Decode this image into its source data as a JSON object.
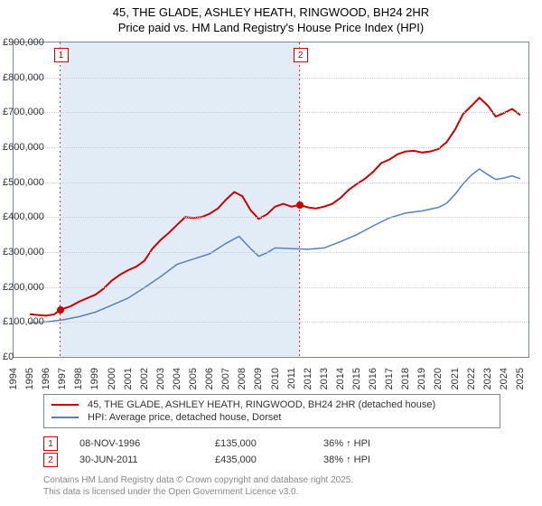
{
  "title": "45, THE GLADE, ASHLEY HEATH, RINGWOOD, BH24 2HR",
  "subtitle": "Price paid vs. HM Land Registry's House Price Index (HPI)",
  "chart": {
    "type": "line",
    "background_color": "#ffffff",
    "border_color": "#7a8aa3",
    "grid_color": "#c9d0dd",
    "x": {
      "min": 1994,
      "max": 2025.5,
      "ticks": [
        1994,
        1995,
        1996,
        1997,
        1998,
        1999,
        2000,
        2001,
        2002,
        2003,
        2004,
        2005,
        2006,
        2007,
        2008,
        2009,
        2010,
        2011,
        2012,
        2013,
        2014,
        2015,
        2016,
        2017,
        2018,
        2019,
        2020,
        2021,
        2022,
        2023,
        2024,
        2025
      ]
    },
    "y": {
      "min": 0,
      "max": 900000,
      "tick_step": 100000,
      "labels": [
        "£0",
        "£100,000",
        "£200,000",
        "£300,000",
        "£400,000",
        "£500,000",
        "£600,000",
        "£700,000",
        "£800,000",
        "£900,000"
      ]
    },
    "shade": {
      "start": 1996.85,
      "end": 2011.5,
      "color": "#e2ecf7"
    },
    "series": [
      {
        "name": "45, THE GLADE, ASHLEY HEATH, RINGWOOD, BH24 2HR (detached house)",
        "color": "#cc0000",
        "line_width": 2,
        "data": [
          [
            1995.0,
            122000
          ],
          [
            1995.5,
            120000
          ],
          [
            1996.0,
            118000
          ],
          [
            1996.5,
            122000
          ],
          [
            1996.85,
            135000
          ],
          [
            1997.5,
            145000
          ],
          [
            1998.0,
            158000
          ],
          [
            1998.5,
            168000
          ],
          [
            1999.0,
            178000
          ],
          [
            1999.5,
            195000
          ],
          [
            2000.0,
            218000
          ],
          [
            2000.5,
            235000
          ],
          [
            2001.0,
            248000
          ],
          [
            2001.5,
            258000
          ],
          [
            2002.0,
            275000
          ],
          [
            2002.5,
            310000
          ],
          [
            2003.0,
            335000
          ],
          [
            2003.5,
            355000
          ],
          [
            2004.0,
            378000
          ],
          [
            2004.5,
            400000
          ],
          [
            2005.0,
            398000
          ],
          [
            2005.5,
            400000
          ],
          [
            2006.0,
            410000
          ],
          [
            2006.5,
            425000
          ],
          [
            2007.0,
            450000
          ],
          [
            2007.5,
            472000
          ],
          [
            2008.0,
            460000
          ],
          [
            2008.5,
            420000
          ],
          [
            2009.0,
            395000
          ],
          [
            2009.5,
            408000
          ],
          [
            2010.0,
            430000
          ],
          [
            2010.5,
            438000
          ],
          [
            2011.0,
            430000
          ],
          [
            2011.5,
            435000
          ],
          [
            2012.0,
            428000
          ],
          [
            2012.5,
            425000
          ],
          [
            2013.0,
            430000
          ],
          [
            2013.5,
            438000
          ],
          [
            2014.0,
            455000
          ],
          [
            2014.5,
            478000
          ],
          [
            2015.0,
            495000
          ],
          [
            2015.5,
            510000
          ],
          [
            2016.0,
            530000
          ],
          [
            2016.5,
            555000
          ],
          [
            2017.0,
            565000
          ],
          [
            2017.5,
            580000
          ],
          [
            2018.0,
            588000
          ],
          [
            2018.5,
            590000
          ],
          [
            2019.0,
            585000
          ],
          [
            2019.5,
            588000
          ],
          [
            2020.0,
            595000
          ],
          [
            2020.5,
            615000
          ],
          [
            2021.0,
            650000
          ],
          [
            2021.5,
            695000
          ],
          [
            2022.0,
            718000
          ],
          [
            2022.5,
            742000
          ],
          [
            2023.0,
            720000
          ],
          [
            2023.5,
            688000
          ],
          [
            2024.0,
            698000
          ],
          [
            2024.5,
            710000
          ],
          [
            2025.0,
            692000
          ]
        ]
      },
      {
        "name": "HPI: Average price, detached house, Dorset",
        "color": "#5b7fbf",
        "line_width": 1.5,
        "data": [
          [
            1995.0,
            98000
          ],
          [
            1996.0,
            100000
          ],
          [
            1997.0,
            106000
          ],
          [
            1998.0,
            115000
          ],
          [
            1999.0,
            128000
          ],
          [
            2000.0,
            148000
          ],
          [
            2001.0,
            168000
          ],
          [
            2002.0,
            198000
          ],
          [
            2003.0,
            230000
          ],
          [
            2004.0,
            265000
          ],
          [
            2005.0,
            280000
          ],
          [
            2006.0,
            295000
          ],
          [
            2007.0,
            325000
          ],
          [
            2007.8,
            345000
          ],
          [
            2008.5,
            310000
          ],
          [
            2009.0,
            288000
          ],
          [
            2009.5,
            298000
          ],
          [
            2010.0,
            312000
          ],
          [
            2011.0,
            310000
          ],
          [
            2012.0,
            308000
          ],
          [
            2013.0,
            312000
          ],
          [
            2014.0,
            330000
          ],
          [
            2015.0,
            350000
          ],
          [
            2016.0,
            375000
          ],
          [
            2017.0,
            398000
          ],
          [
            2018.0,
            412000
          ],
          [
            2019.0,
            418000
          ],
          [
            2020.0,
            428000
          ],
          [
            2020.5,
            440000
          ],
          [
            2021.0,
            465000
          ],
          [
            2021.5,
            495000
          ],
          [
            2022.0,
            520000
          ],
          [
            2022.5,
            538000
          ],
          [
            2023.0,
            522000
          ],
          [
            2023.5,
            508000
          ],
          [
            2024.0,
            512000
          ],
          [
            2024.5,
            518000
          ],
          [
            2025.0,
            510000
          ]
        ]
      }
    ],
    "markers": [
      {
        "n": "1",
        "x": 1996.85,
        "y": 135000
      },
      {
        "n": "2",
        "x": 2011.5,
        "y": 435000
      }
    ]
  },
  "legend": [
    {
      "color": "#cc0000",
      "label": "45, THE GLADE, ASHLEY HEATH, RINGWOOD, BH24 2HR (detached house)"
    },
    {
      "color": "#5b7fbf",
      "label": "HPI: Average price, detached house, Dorset"
    }
  ],
  "sales": [
    {
      "n": "1",
      "date": "08-NOV-1996",
      "price": "£135,000",
      "delta": "36% ↑ HPI"
    },
    {
      "n": "2",
      "date": "30-JUN-2011",
      "price": "£435,000",
      "delta": "38% ↑ HPI"
    }
  ],
  "attribution": {
    "line1": "Contains HM Land Registry data © Crown copyright and database right 2025.",
    "line2": "This data is licensed under the Open Government Licence v3.0."
  }
}
